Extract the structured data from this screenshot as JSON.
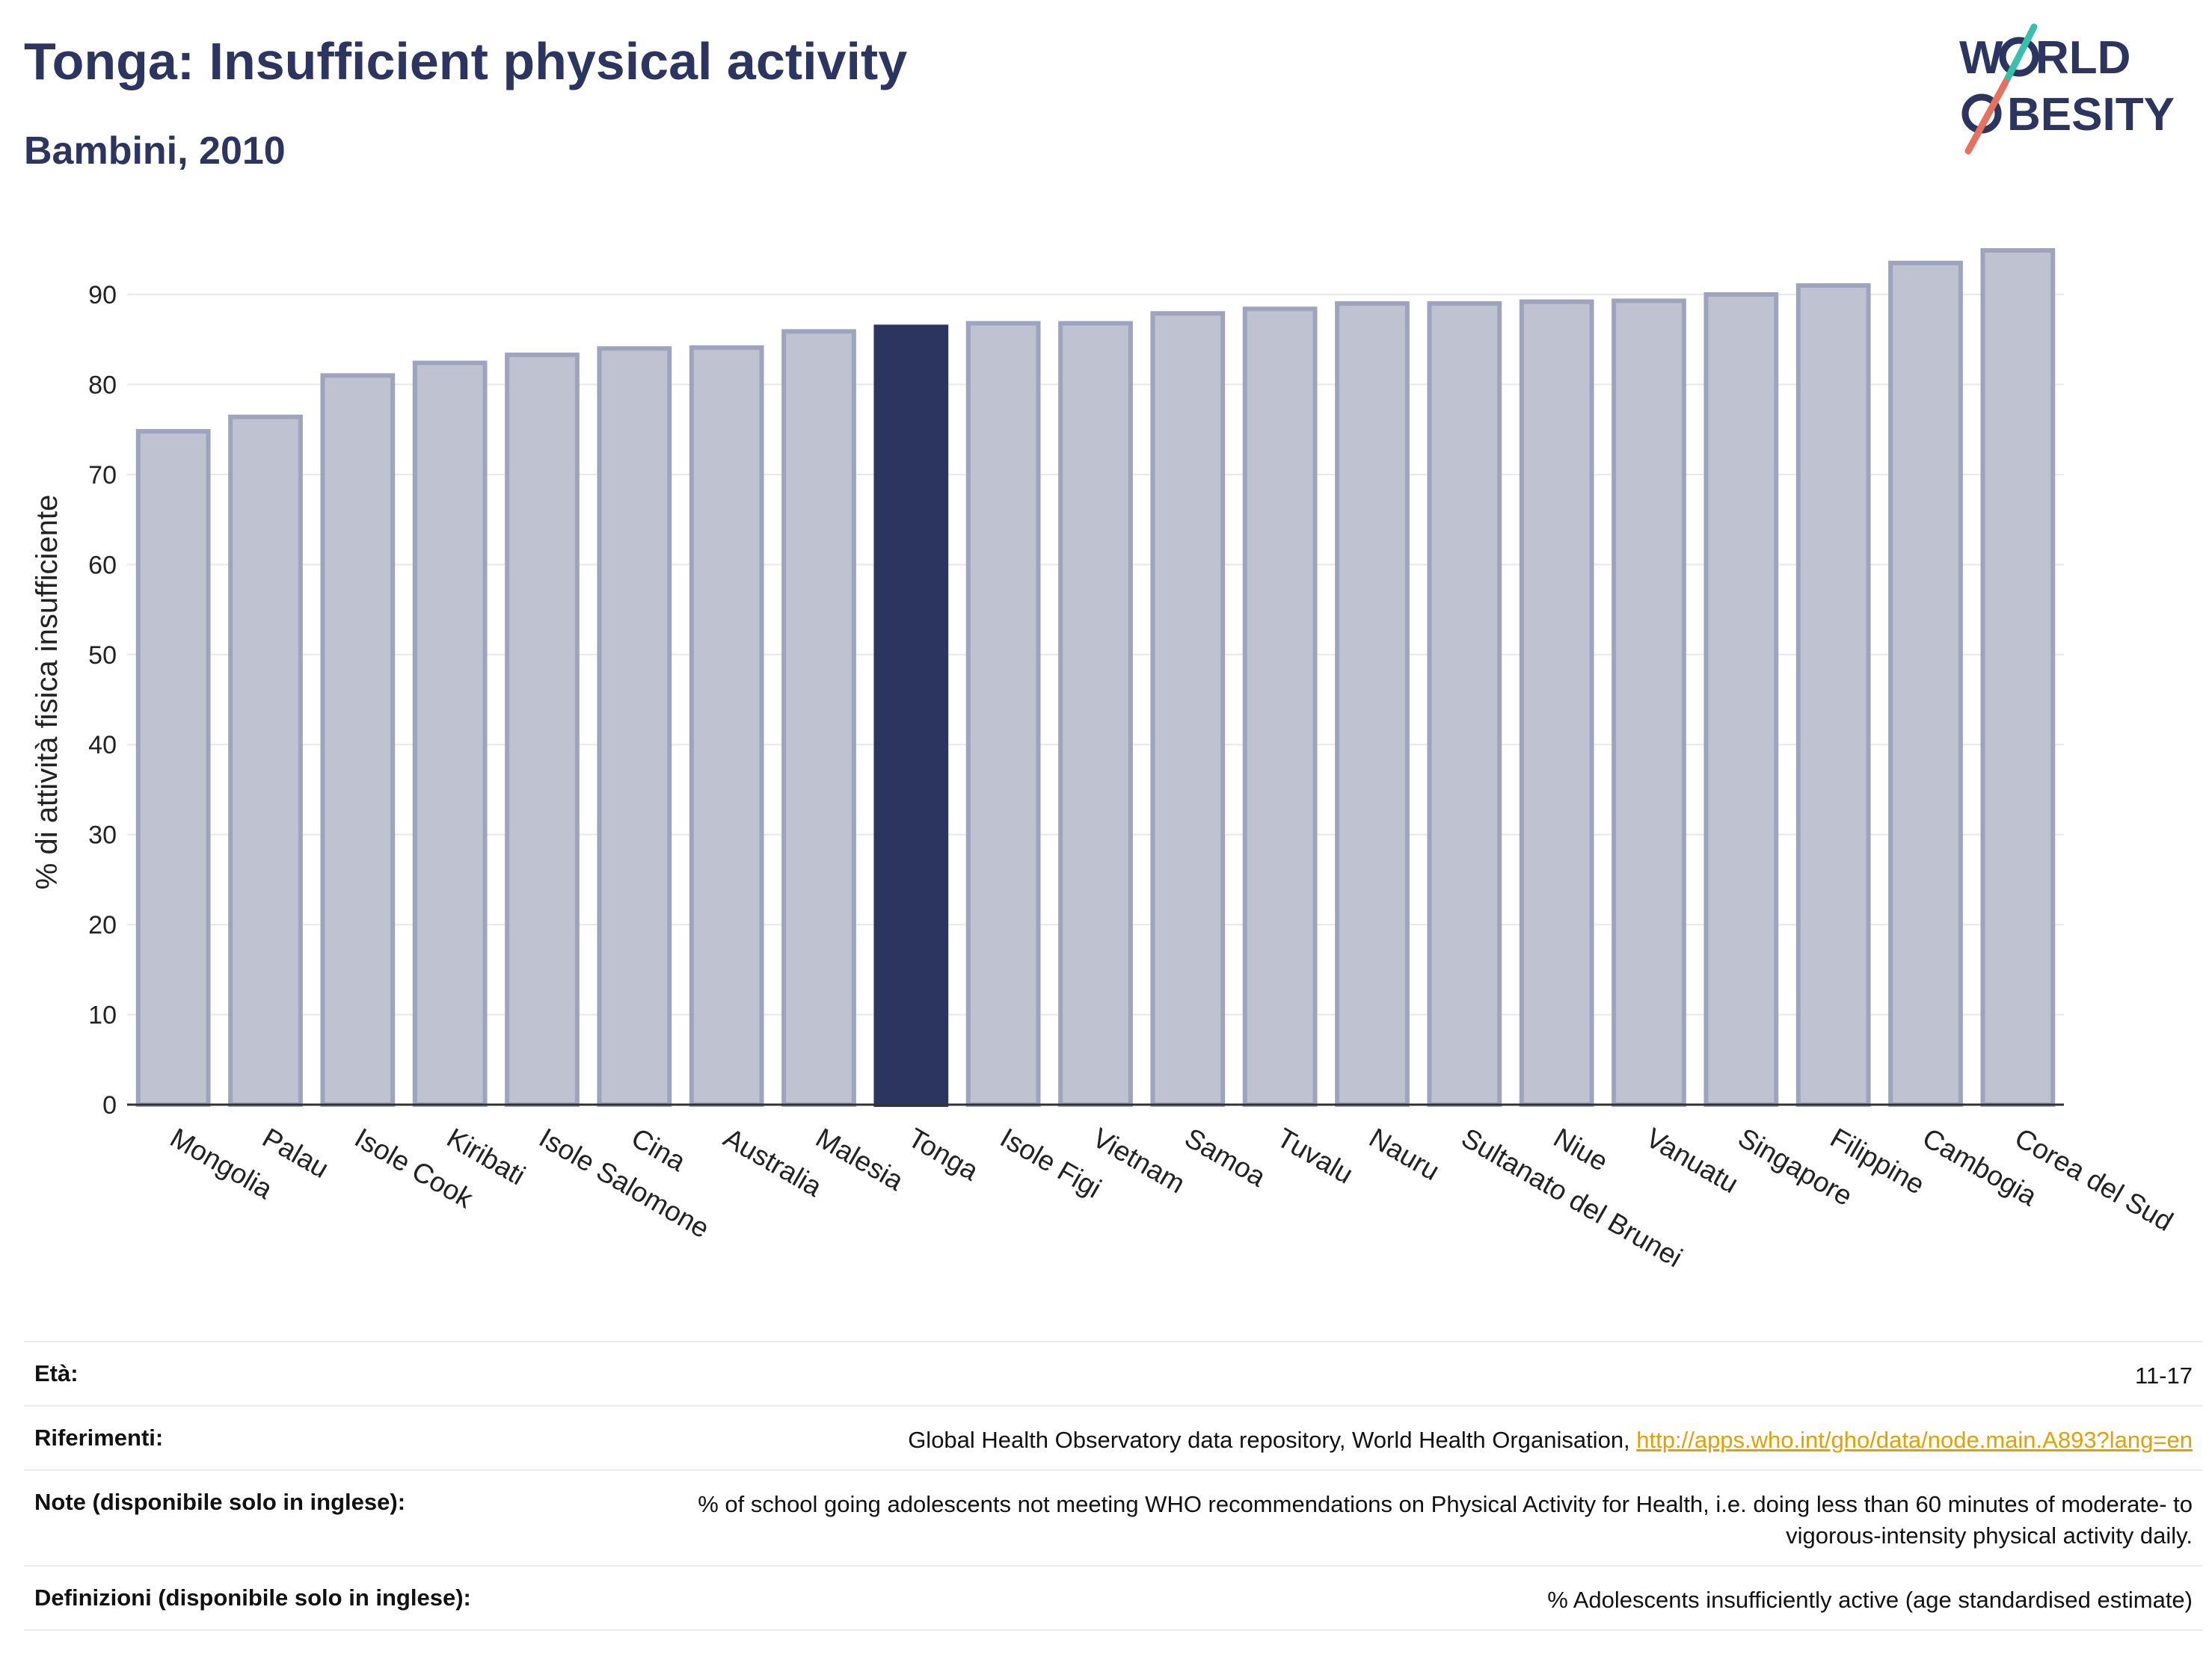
{
  "header": {
    "title": "Tonga: Insufficient physical activity",
    "subtitle": "Bambini, 2010"
  },
  "logo": {
    "line1_left": "W",
    "line1_right": "RLD",
    "line2": "BESITY",
    "colors": {
      "text": "#2b3560",
      "slash_top": "#3bbfad",
      "slash_bottom": "#e8705e"
    }
  },
  "colors": {
    "highlight_bar": "#2b3560",
    "other_bar_fill": "#bfc2d0",
    "other_bar_stroke": "#9ea4bd",
    "grid": "#e6e8ee",
    "axis": "#333333"
  },
  "chart_data": {
    "type": "bar",
    "title": "Tonga: Insufficient physical activity",
    "subtitle": "Bambini, 2010",
    "xlabel": "",
    "ylabel": "% di attività fisica insufficiente",
    "ylim": [
      0,
      97
    ],
    "yticks": [
      0,
      10,
      20,
      30,
      40,
      50,
      60,
      70,
      80,
      90
    ],
    "grid": true,
    "highlight": "Tonga",
    "categories": [
      "Mongolia",
      "Palau",
      "Isole Cook",
      "Kiribati",
      "Isole Salomone",
      "Cina",
      "Australia",
      "Malesia",
      "Tonga",
      "Isole Figi",
      "Vietnam",
      "Samoa",
      "Tuvalu",
      "Nauru",
      "Sultanato del Brunei",
      "Niue",
      "Vanuatu",
      "Singapore",
      "Filippine",
      "Cambogia",
      "Corea del Sud"
    ],
    "values": [
      74.8,
      76.4,
      81.0,
      82.4,
      83.3,
      84.0,
      84.1,
      85.9,
      86.4,
      86.8,
      86.8,
      87.9,
      88.4,
      89.0,
      89.0,
      89.2,
      89.3,
      90.0,
      91.0,
      93.5,
      94.9
    ]
  },
  "meta": {
    "rows": [
      {
        "label": "Età:",
        "value": "11-17"
      },
      {
        "label": "Riferimenti:",
        "value": "Global Health Observatory data repository, World Health Organisation, ",
        "link": "http://apps.who.int/gho/data/node.main.A893?lang=en"
      },
      {
        "label": "Note (disponibile solo in inglese):",
        "value": "% of school going adolescents not meeting WHO recommendations on Physical Activity for Health, i.e. doing less than 60 minutes of moderate- to vigorous-intensity physical activity daily."
      },
      {
        "label": "Definizioni (disponibile solo in inglese):",
        "value": "% Adolescents insufficiently active (age standardised estimate)"
      }
    ]
  }
}
